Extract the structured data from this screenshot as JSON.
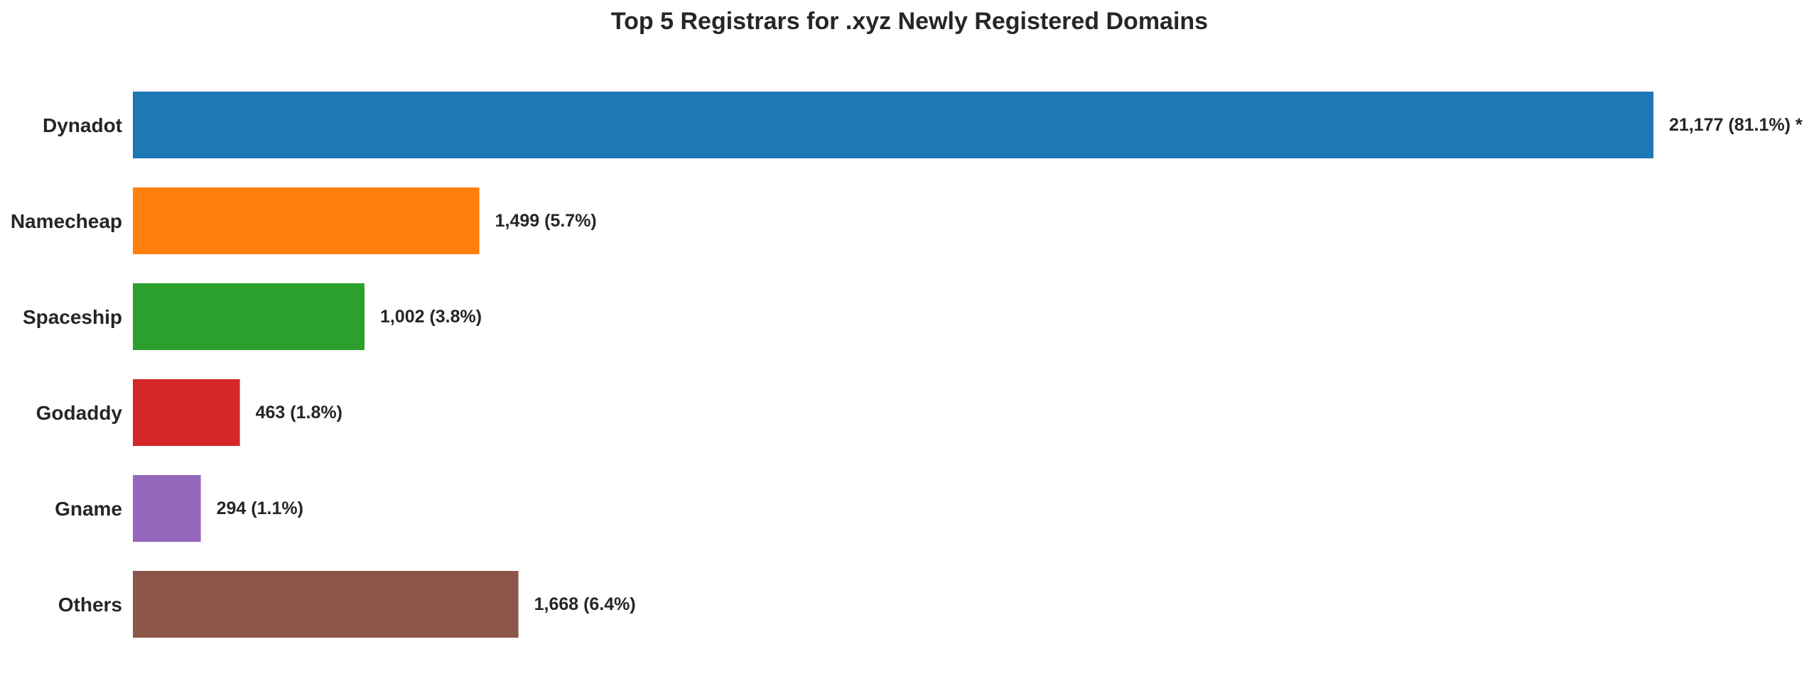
{
  "chart_data": {
    "type": "bar",
    "orientation": "horizontal",
    "title": "Top 5 Registrars for .xyz Newly Registered Domains",
    "xlabel": "",
    "ylabel": "",
    "categories": [
      "Dynadot",
      "Namecheap",
      "Spaceship",
      "Godaddy",
      "Gname",
      "Others"
    ],
    "values": [
      21177,
      1499,
      1002,
      463,
      294,
      1668
    ],
    "data_labels": [
      "21,177 (81.1%) *",
      "1,499 (5.7%)",
      "1,002 (3.8%)",
      "463 (1.8%)",
      "294 (1.1%)",
      "1,668 (6.4%)"
    ],
    "colors": [
      "#1f77b4",
      "#ff7f0e",
      "#2ca02c",
      "#d62728",
      "#9467bd",
      "#8c564b"
    ],
    "grid": false,
    "legend": "none",
    "axis_break_on_first_bar": true
  }
}
